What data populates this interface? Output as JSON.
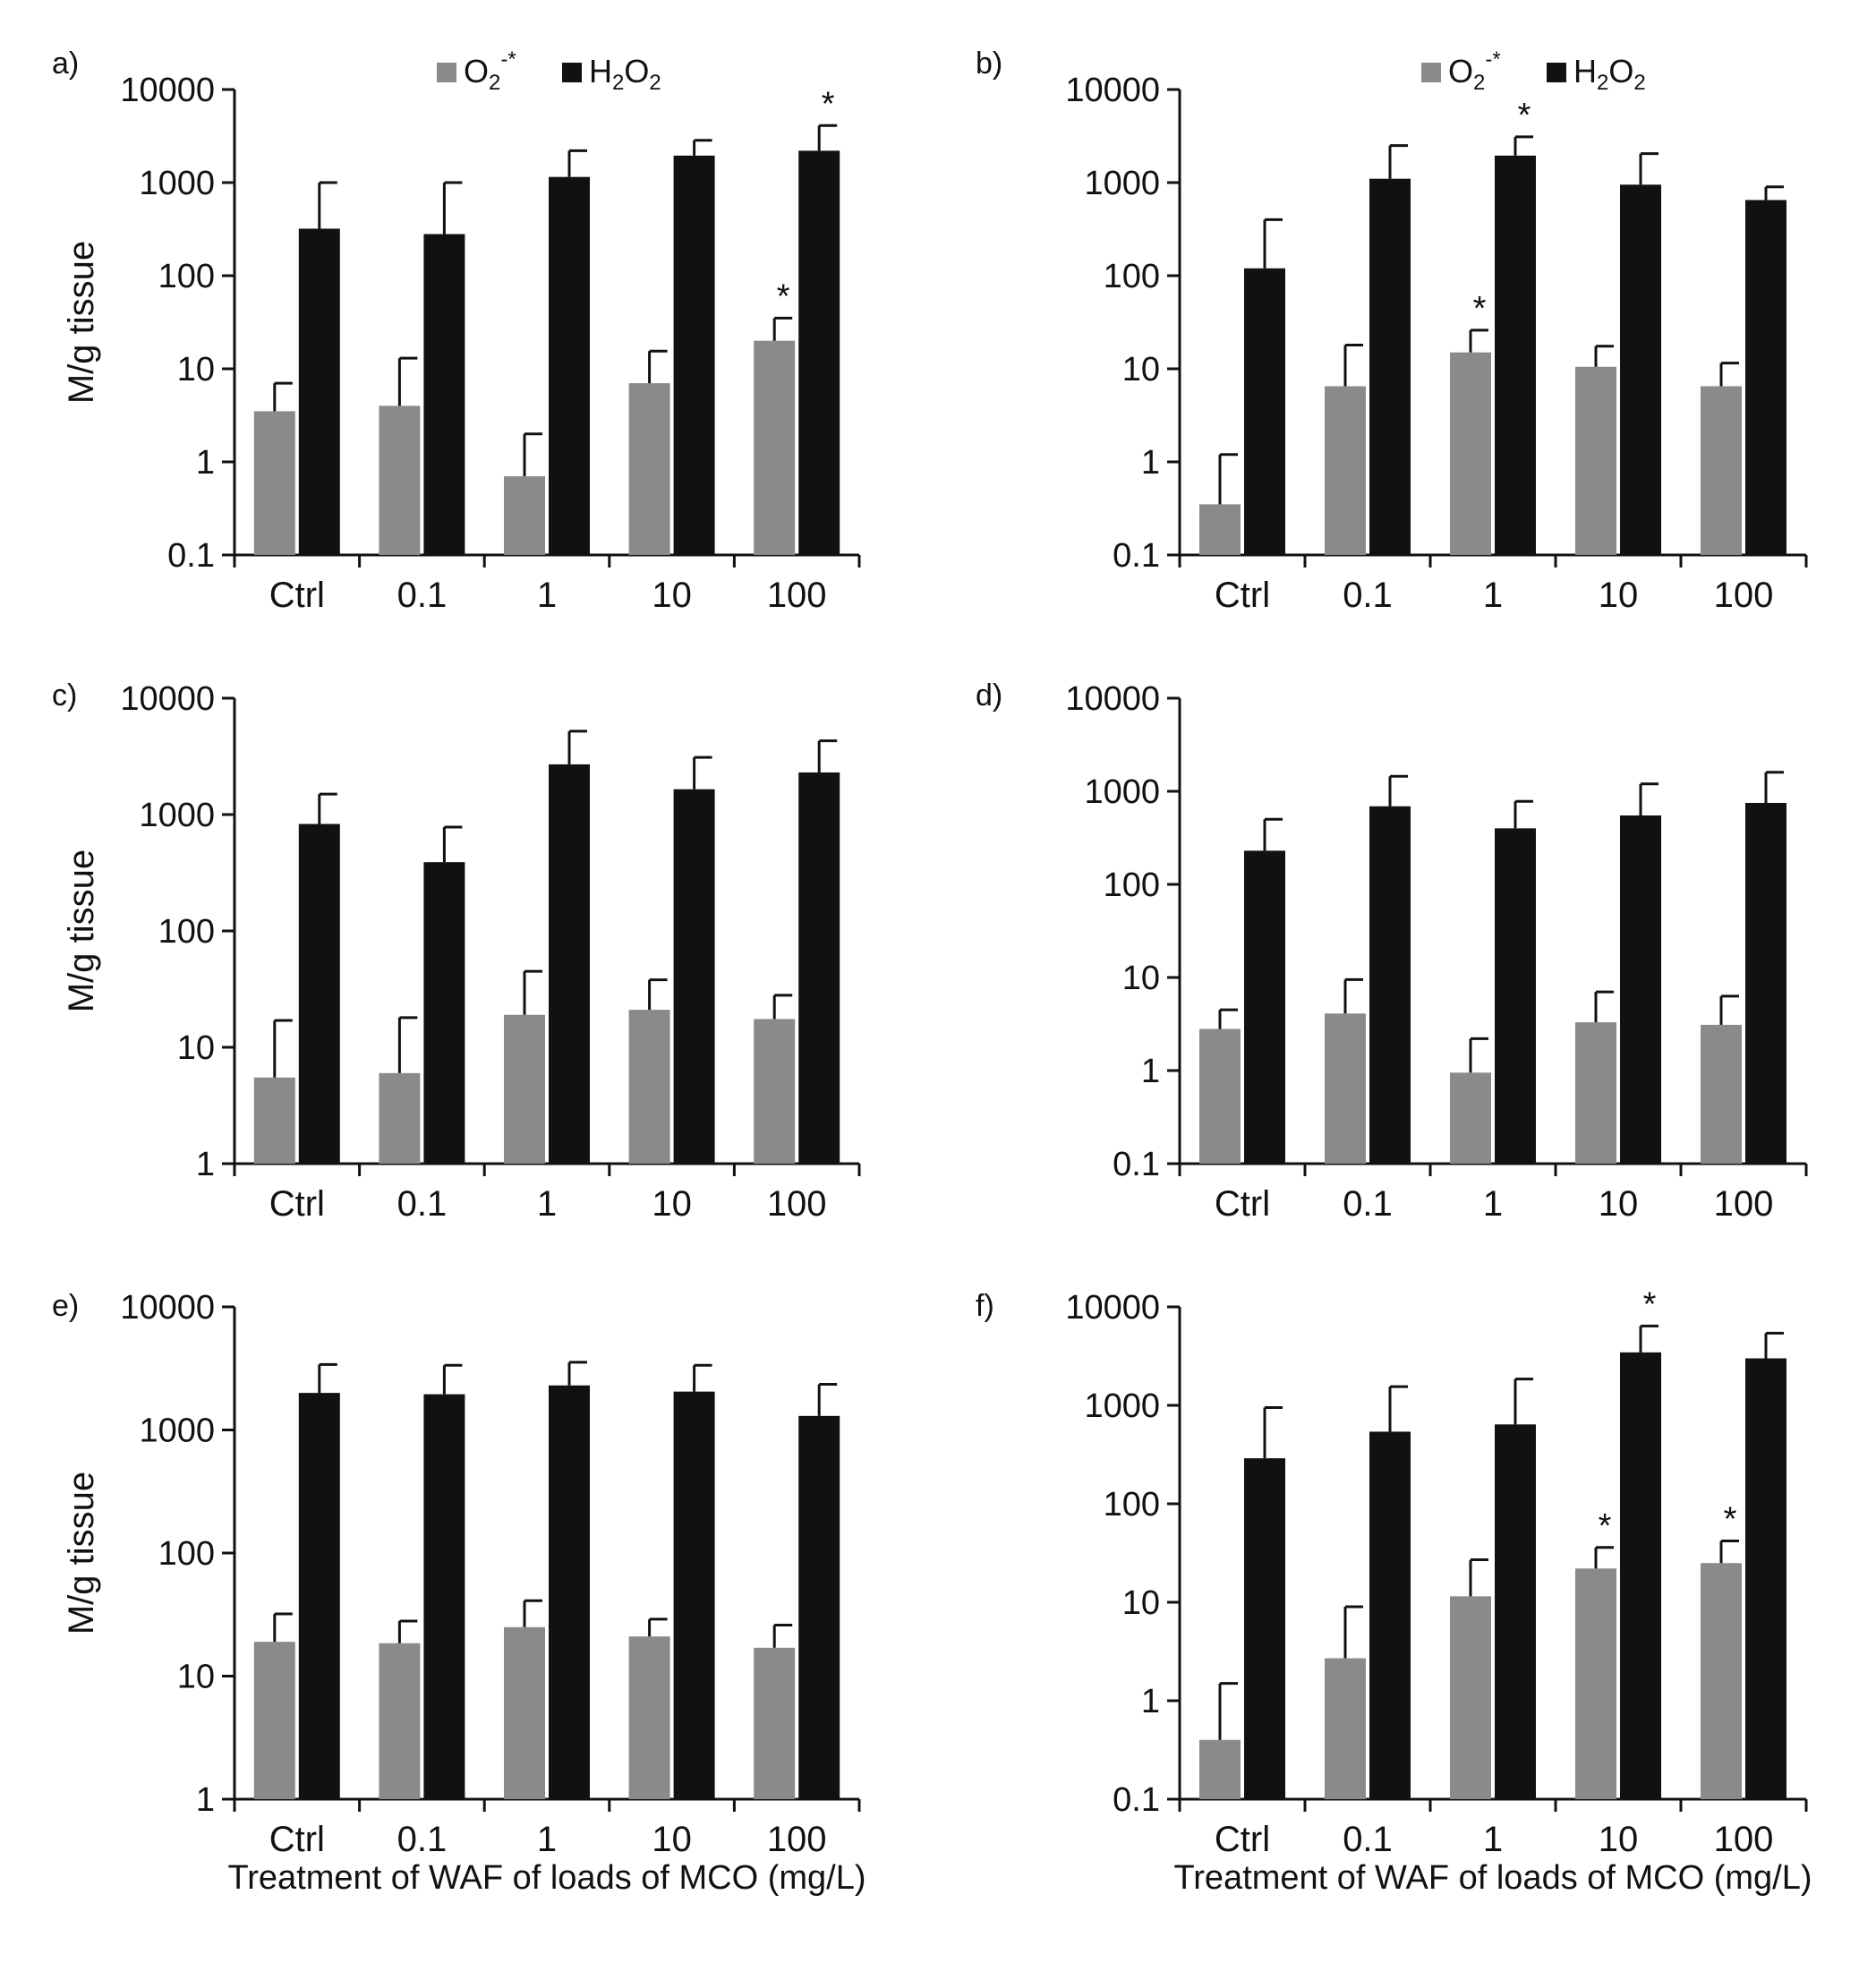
{
  "figure": {
    "shared_xlabel": "Treatment of WAF of loads of MCO (mg/L)",
    "legend": {
      "o2_main": "O",
      "o2_sub": "2",
      "o2_sup": "-*",
      "h2o2_h": "H",
      "h2o2_sub1": "2",
      "h2o2_o": "O",
      "h2o2_sub2": "2"
    },
    "colors": {
      "o2": "#8a8a8a",
      "h2o2": "#111111",
      "axis": "#111111"
    }
  },
  "chart_data": [
    {
      "id": "a",
      "panel_label": "a)",
      "type": "bar",
      "scale": "log",
      "ylabel": "M/g tissue",
      "xlabel": "",
      "ylim": [
        0.1,
        10000
      ],
      "yticks": [
        {
          "v": 0.1,
          "label": "0.1"
        },
        {
          "v": 1,
          "label": "1"
        },
        {
          "v": 10,
          "label": "10"
        },
        {
          "v": 100,
          "label": "100"
        },
        {
          "v": 1000,
          "label": "1000"
        },
        {
          "v": 10000,
          "label": "10000"
        }
      ],
      "categories": [
        "Ctrl",
        "0.1",
        "1",
        "10",
        "100"
      ],
      "show_legend": true,
      "series": [
        {
          "name": "O2-*",
          "values": [
            3.5,
            4,
            0.7,
            7,
            20
          ],
          "errors_upper": [
            7,
            13,
            2,
            15.5,
            35
          ],
          "significant": [
            false,
            false,
            false,
            false,
            true
          ]
        },
        {
          "name": "H2O2",
          "values": [
            320,
            280,
            1150,
            1950,
            2200
          ],
          "errors_upper": [
            1000,
            1000,
            2200,
            2850,
            4100
          ],
          "significant": [
            false,
            false,
            false,
            false,
            true
          ]
        }
      ]
    },
    {
      "id": "b",
      "panel_label": "b)",
      "type": "bar",
      "scale": "log",
      "ylabel": "",
      "xlabel": "",
      "ylim": [
        0.1,
        10000
      ],
      "yticks": [
        {
          "v": 0.1,
          "label": "0.1"
        },
        {
          "v": 1,
          "label": "1"
        },
        {
          "v": 10,
          "label": "10"
        },
        {
          "v": 100,
          "label": "100"
        },
        {
          "v": 1000,
          "label": "1000"
        },
        {
          "v": 10000,
          "label": "10000"
        }
      ],
      "categories": [
        "Ctrl",
        "0.1",
        "1",
        "10",
        "100"
      ],
      "show_legend": true,
      "series": [
        {
          "name": "O2-*",
          "values": [
            0.35,
            6.5,
            15,
            10.5,
            6.5
          ],
          "errors_upper": [
            1.2,
            18,
            26,
            17.5,
            11.5
          ],
          "significant": [
            false,
            false,
            true,
            false,
            false
          ]
        },
        {
          "name": "H2O2",
          "values": [
            120,
            1100,
            1950,
            950,
            650
          ],
          "errors_upper": [
            400,
            2500,
            3100,
            2050,
            900
          ],
          "significant": [
            false,
            false,
            true,
            false,
            false
          ]
        }
      ]
    },
    {
      "id": "c",
      "panel_label": "c)",
      "type": "bar",
      "scale": "log",
      "ylabel": "M/g tissue",
      "xlabel": "",
      "ylim": [
        1,
        10000
      ],
      "yticks": [
        {
          "v": 1,
          "label": "1"
        },
        {
          "v": 10,
          "label": "10"
        },
        {
          "v": 100,
          "label": "100"
        },
        {
          "v": 1000,
          "label": "1000"
        },
        {
          "v": 10000,
          "label": "10000"
        }
      ],
      "categories": [
        "Ctrl",
        "0.1",
        "1",
        "10",
        "100"
      ],
      "show_legend": false,
      "series": [
        {
          "name": "O2-*",
          "values": [
            5.5,
            6,
            19,
            21,
            17.5
          ],
          "errors_upper": [
            17,
            18,
            45,
            38,
            28
          ],
          "significant": [
            false,
            false,
            false,
            false,
            false
          ]
        },
        {
          "name": "H2O2",
          "values": [
            830,
            390,
            2700,
            1650,
            2300
          ],
          "errors_upper": [
            1500,
            780,
            5200,
            3100,
            4300
          ],
          "significant": [
            false,
            false,
            false,
            false,
            false
          ]
        }
      ]
    },
    {
      "id": "d",
      "panel_label": "d)",
      "type": "bar",
      "scale": "log",
      "ylabel": "",
      "xlabel": "",
      "ylim": [
        0.1,
        10000
      ],
      "yticks": [
        {
          "v": 0.1,
          "label": "0.1"
        },
        {
          "v": 1,
          "label": "1"
        },
        {
          "v": 10,
          "label": "10"
        },
        {
          "v": 100,
          "label": "100"
        },
        {
          "v": 1000,
          "label": "1000"
        },
        {
          "v": 10000,
          "label": "10000"
        }
      ],
      "categories": [
        "Ctrl",
        "0.1",
        "1",
        "10",
        "100"
      ],
      "show_legend": false,
      "series": [
        {
          "name": "O2-*",
          "values": [
            2.8,
            4.1,
            0.95,
            3.3,
            3.1
          ],
          "errors_upper": [
            4.5,
            9.5,
            2.2,
            7,
            6.3
          ],
          "significant": [
            false,
            false,
            false,
            false,
            false
          ]
        },
        {
          "name": "H2O2",
          "values": [
            230,
            690,
            400,
            550,
            750
          ],
          "errors_upper": [
            500,
            1450,
            780,
            1200,
            1600
          ],
          "significant": [
            false,
            false,
            false,
            false,
            false
          ]
        }
      ]
    },
    {
      "id": "e",
      "panel_label": "e)",
      "type": "bar",
      "scale": "log",
      "ylabel": "M/g tissue",
      "xlabel": "",
      "ylim": [
        1,
        10000
      ],
      "yticks": [
        {
          "v": 1,
          "label": "1"
        },
        {
          "v": 10,
          "label": "10"
        },
        {
          "v": 100,
          "label": "100"
        },
        {
          "v": 1000,
          "label": "1000"
        },
        {
          "v": 10000,
          "label": "10000"
        }
      ],
      "categories": [
        "Ctrl",
        "0.1",
        "1",
        "10",
        "100"
      ],
      "show_legend": false,
      "series": [
        {
          "name": "O2-*",
          "values": [
            19,
            18.5,
            25,
            21,
            17
          ],
          "errors_upper": [
            32,
            28,
            41,
            29,
            26
          ],
          "significant": [
            false,
            false,
            false,
            false,
            false
          ]
        },
        {
          "name": "H2O2",
          "values": [
            2000,
            1950,
            2300,
            2050,
            1300
          ],
          "errors_upper": [
            3400,
            3350,
            3550,
            3350,
            2350
          ],
          "significant": [
            false,
            false,
            false,
            false,
            false
          ]
        }
      ]
    },
    {
      "id": "f",
      "panel_label": "f)",
      "type": "bar",
      "scale": "log",
      "ylabel": "",
      "xlabel": "",
      "ylim": [
        0.1,
        10000
      ],
      "yticks": [
        {
          "v": 0.1,
          "label": "0.1"
        },
        {
          "v": 1,
          "label": "1"
        },
        {
          "v": 10,
          "label": "10"
        },
        {
          "v": 100,
          "label": "100"
        },
        {
          "v": 1000,
          "label": "1000"
        },
        {
          "v": 10000,
          "label": "10000"
        }
      ],
      "categories": [
        "Ctrl",
        "0.1",
        "1",
        "10",
        "100"
      ],
      "show_legend": false,
      "series": [
        {
          "name": "O2-*",
          "values": [
            0.4,
            2.7,
            11.5,
            22,
            25
          ],
          "errors_upper": [
            1.5,
            9,
            27,
            36,
            42
          ],
          "significant": [
            false,
            false,
            false,
            true,
            true
          ]
        },
        {
          "name": "H2O2",
          "values": [
            290,
            540,
            640,
            3450,
            3000
          ],
          "errors_upper": [
            950,
            1550,
            1850,
            6400,
            5400
          ],
          "significant": [
            false,
            false,
            false,
            true,
            false
          ]
        }
      ]
    }
  ]
}
